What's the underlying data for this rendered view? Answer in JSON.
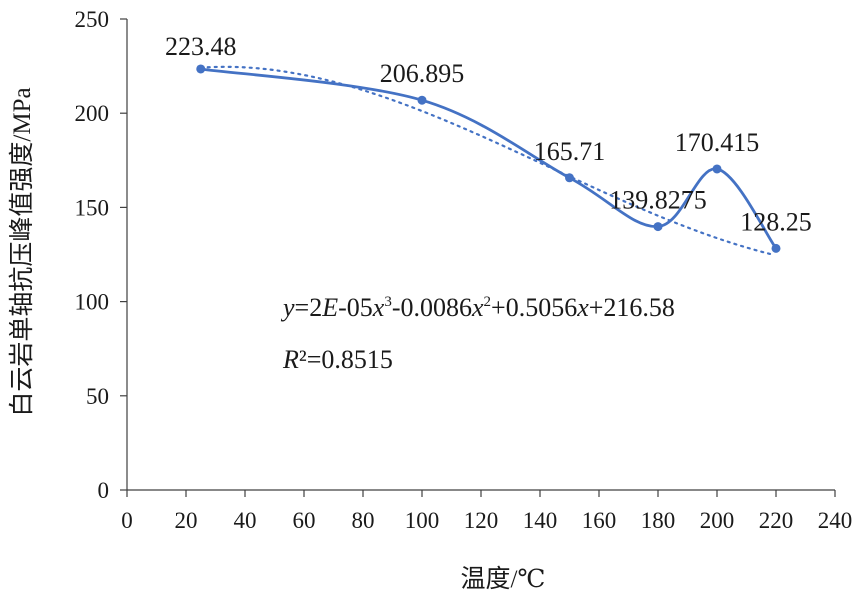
{
  "chart_data": {
    "type": "line",
    "title": "",
    "xlabel": "温度/℃",
    "ylabel": "白云岩单轴抗压峰值强度/MPa",
    "xlim": [
      0,
      240
    ],
    "ylim": [
      0,
      250
    ],
    "x_ticks": [
      0,
      20,
      40,
      60,
      80,
      100,
      120,
      140,
      160,
      180,
      200,
      220,
      240
    ],
    "y_ticks": [
      0,
      50,
      100,
      150,
      200,
      250
    ],
    "grid": false,
    "legend": "none",
    "series": [
      {
        "x": [
          25,
          100,
          150,
          180,
          200,
          220
        ],
        "values": [
          223.48,
          206.895,
          165.71,
          139.8275,
          170.415,
          128.25
        ],
        "labels": [
          "223.48",
          "206.895",
          "165.71",
          "139.8275",
          "170.415",
          "128.25"
        ],
        "color": "#4472c4",
        "style": "smooth-solid-with-markers"
      }
    ],
    "trendline": {
      "type": "polynomial",
      "order": 3,
      "coefficients": [
        2e-05,
        -0.0086,
        0.5056,
        216.58
      ],
      "x_range": [
        25,
        220
      ],
      "color": "#4472c4",
      "style": "dotted"
    },
    "equation": {
      "y": "y",
      "eq1": "=2",
      "E": "E",
      "mid": "-05",
      "x1": "x",
      "exp3": "3",
      "c2": "-0.0086",
      "x2": "x",
      "exp2": "2",
      "c1": "+0.5056",
      "x3": "x",
      "c0": "+216.58",
      "R": "R",
      "r_exp": "²",
      "r_val": "=0.8515"
    }
  }
}
